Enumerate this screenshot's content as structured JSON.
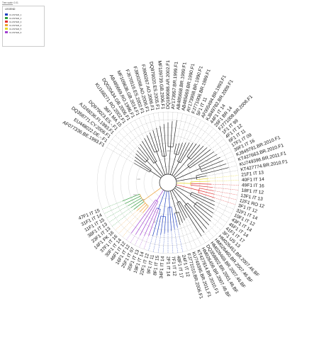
{
  "scale": {
    "label": "Tree scale: 0.01"
  },
  "legend": {
    "title": "LEGEND",
    "items": [
      {
        "label": "CLUSTER_1",
        "color": "#1f3fbf"
      },
      {
        "label": "CLUSTER_2",
        "color": "#2e9a3a"
      },
      {
        "label": "CLUSTER_3",
        "color": "#e03030"
      },
      {
        "label": "CLUSTER_4",
        "color": "#f0a030"
      },
      {
        "label": "CLUSTER_5",
        "color": "#e8d820"
      },
      {
        "label": "CLUSTER_6",
        "color": "#a040d0"
      }
    ]
  },
  "leaves": [
    {
      "label": "AF077336.BE.1993.F1",
      "cluster": 0
    },
    {
      "label": "EU448022.DE.-.F1",
      "cluster": 0
    },
    {
      "label": "DQ358771.CY.2006.F1",
      "cluster": 0
    },
    {
      "label": "AJ249236.FI.1993.F1",
      "cluster": 0
    },
    {
      "label": "DQ979023.ES.-.F1",
      "cluster": 0
    },
    {
      "label": "36F1 MA 15",
      "cluster": 0
    },
    {
      "label": "KU168271.RO.2002.F1",
      "cluster": 0
    },
    {
      "label": "DQ020434.GB.2006.F1",
      "cluster": 0
    },
    {
      "label": "AB485669.RO.1996.F1",
      "cluster": 0
    },
    {
      "label": "MF109636.GB.2014.F1",
      "cluster": 0
    },
    {
      "label": "FJ670516.ES.2002.F1",
      "cluster": 0
    },
    {
      "label": "FJ900268.AO.2006.F1",
      "cluster": 0
    },
    {
      "label": "FJ900267.AO.2006.F1",
      "cluster": 0
    },
    {
      "label": "DQ979020.ES.2005.F1",
      "cluster": 0
    },
    {
      "label": "MF109739.GB.2006.F1",
      "cluster": 0
    },
    {
      "label": "DQ189088.AR.2002.F1",
      "cluster": 0
    },
    {
      "label": "AY173957.BR.1999.F1",
      "cluster": 0
    },
    {
      "label": "AB485668.BR.1999.F1",
      "cluster": 0
    },
    {
      "label": "AB485669.BR.1990.F1",
      "cluster": 0
    },
    {
      "label": "AY173958.BR.1990.F1",
      "cluster": 0
    },
    {
      "label": "FJ771006.BR.1989.F1",
      "cluster": 0
    },
    {
      "label": "5F1 IT 11",
      "cluster": 0
    },
    {
      "label": "AF005494.BR.1993.F1",
      "cluster": 0
    },
    {
      "label": "KJ849782.BR.2009.F1",
      "cluster": 0
    },
    {
      "label": "44F1 IT 14",
      "cluster": 0
    },
    {
      "label": "26F1 BR 14",
      "cluster": 0
    },
    {
      "label": "FJ771008.BR.2006.F1",
      "cluster": 0
    },
    {
      "label": "1F1 IT 99",
      "cluster": 0
    },
    {
      "label": "4F1 IT 12",
      "cluster": 0
    },
    {
      "label": "6F1 IT 11",
      "cluster": 0
    },
    {
      "label": "17F1 IT 09",
      "cluster": 0
    },
    {
      "label": "39F1 IT 16",
      "cluster": 0
    },
    {
      "label": "KJ849791.BR.2010.F1",
      "cluster": 0
    },
    {
      "label": "KT427663.BR.2010.F1",
      "cluster": 0
    },
    {
      "label": "KU749396.BR.2011.F1",
      "cluster": 0
    },
    {
      "label": "KT427774.BR.2010.F1",
      "cluster": 0
    },
    {
      "label": "21F1 IT 13",
      "cluster": 5
    },
    {
      "label": "40F1 IT 14",
      "cluster": 5
    },
    {
      "label": "49F1 IT 16",
      "cluster": 3
    },
    {
      "label": "18F1 IT 12",
      "cluster": 3
    },
    {
      "label": "13F1 IT 13",
      "cluster": 3
    },
    {
      "label": "12F1 RO 12",
      "cluster": 3
    },
    {
      "label": "3F1 IT 12",
      "cluster": 3
    },
    {
      "label": "32F1 IT 14",
      "cluster": 0
    },
    {
      "label": "10F1 IT 12",
      "cluster": 0
    },
    {
      "label": "43F1 IT 14",
      "cluster": 0
    },
    {
      "label": "45F1 IT 14",
      "cluster": 0
    },
    {
      "label": "41F1 IT 17",
      "cluster": 0
    },
    {
      "label": "3F1 US 13",
      "cluster": 0
    },
    {
      "label": "HM026451.BR.2007.46.BF",
      "cluster": 0
    },
    {
      "label": "HM026460.BR.2007.46.BF",
      "cluster": 0
    },
    {
      "label": "HM026469.BR.2007.46.BF",
      "cluster": 0
    },
    {
      "label": "DQ358802.BR.2001.46.BF",
      "cluster": 0
    },
    {
      "label": "HM026456.BR.2007.46.BF",
      "cluster": 0
    },
    {
      "label": "KT427814.BR.2010.F1",
      "cluster": 0
    },
    {
      "label": "KU749395.BR.2011.F1",
      "cluster": 0
    },
    {
      "label": "FJ771010.BR.2006.F1",
      "cluster": 0
    },
    {
      "label": "24F1 IT 12",
      "cluster": 1
    },
    {
      "label": "48F1 IT 17",
      "cluster": 1
    },
    {
      "label": "7F1 IT 12",
      "cluster": 1
    },
    {
      "label": "2F1 IT 14",
      "cluster": 1
    },
    {
      "label": "34F1 IT 14",
      "cluster": 1
    },
    {
      "label": "8F1 IT 15",
      "cluster": 1
    },
    {
      "label": "9F1 IT 11",
      "cluster": 1
    },
    {
      "label": "22F1 IT 12",
      "cluster": 1
    },
    {
      "label": "19F1 IT 14",
      "cluster": 6
    },
    {
      "label": "20F1 IT 13",
      "cluster": 6
    },
    {
      "label": "25F1 IT 07",
      "cluster": 6
    },
    {
      "label": "16F1 IT 12",
      "cluster": 6
    },
    {
      "label": "46F1 IT 12",
      "cluster": 6
    },
    {
      "label": "30F1 IT 14",
      "cluster": 4
    },
    {
      "label": "37F1 IT 16",
      "cluster": 4
    },
    {
      "label": "14F1 PK 16",
      "cluster": 4
    },
    {
      "label": "23F1 IT 13",
      "cluster": 2
    },
    {
      "label": "38F1 IT 13",
      "cluster": 2
    },
    {
      "label": "11F1 IT 15",
      "cluster": 2
    },
    {
      "label": "31F1 IT 14",
      "cluster": 2
    },
    {
      "label": "47F1 IT 15",
      "cluster": 2
    }
  ],
  "cluster_colors": [
    "#222222",
    "#1f3fbf",
    "#2e9a3a",
    "#e03030",
    "#f0a030",
    "#e8d820",
    "#a040d0"
  ],
  "bootstrap_labels": [
    "100",
    "100",
    "100",
    "99",
    "100",
    "98",
    "100"
  ]
}
